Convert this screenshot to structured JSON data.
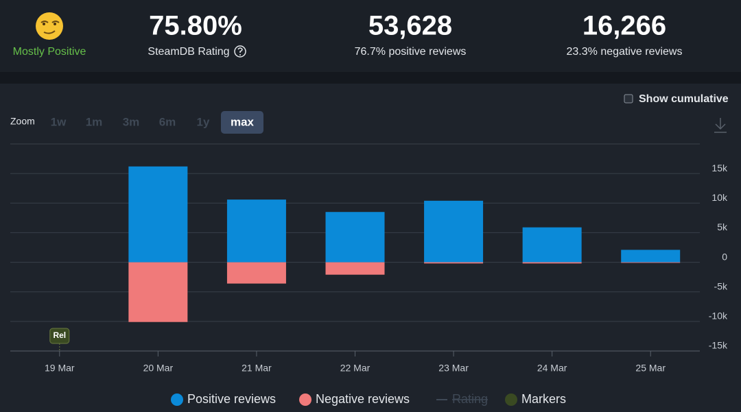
{
  "header": {
    "rating_word": "Mostly Positive",
    "rating": {
      "value": "75.80%",
      "label": "SteamDB Rating"
    },
    "positive": {
      "value": "53,628",
      "label": "76.7% positive reviews"
    },
    "negative": {
      "value": "16,266",
      "label": "23.3% negative reviews"
    }
  },
  "controls": {
    "show_cumulative": "Show cumulative",
    "zoom_label": "Zoom",
    "zoom_options": [
      "1w",
      "1m",
      "3m",
      "6m",
      "1y",
      "max"
    ],
    "zoom_active": 5
  },
  "chart_data": {
    "type": "stacked_bar",
    "categories": [
      "19 Mar",
      "20 Mar",
      "21 Mar",
      "22 Mar",
      "23 Mar",
      "24 Mar",
      "25 Mar"
    ],
    "series": [
      {
        "name": "Positive reviews",
        "color": "#0b8ad8",
        "values": [
          0,
          16200,
          10600,
          8500,
          10400,
          5900,
          2100
        ]
      },
      {
        "name": "Negative reviews",
        "color": "#f07a7a",
        "values": [
          0,
          -10100,
          -3600,
          -2100,
          -200,
          -200,
          -100
        ]
      }
    ],
    "rating_series": {
      "name": "Rating",
      "visible": false
    },
    "markers": {
      "name": "Markers",
      "color": "#3a4a22",
      "items": [
        {
          "category": "19 Mar",
          "label": "Rel"
        }
      ]
    },
    "ylim": [
      -15000,
      20000
    ],
    "yticks": [
      {
        "value": -15000,
        "label": "-15k"
      },
      {
        "value": -10000,
        "label": "-10k"
      },
      {
        "value": -5000,
        "label": "-5k"
      },
      0,
      {
        "value": 5000,
        "label": "5k"
      },
      {
        "value": 10000,
        "label": "10k"
      },
      {
        "value": 15000,
        "label": "15k"
      }
    ],
    "grid": true
  }
}
